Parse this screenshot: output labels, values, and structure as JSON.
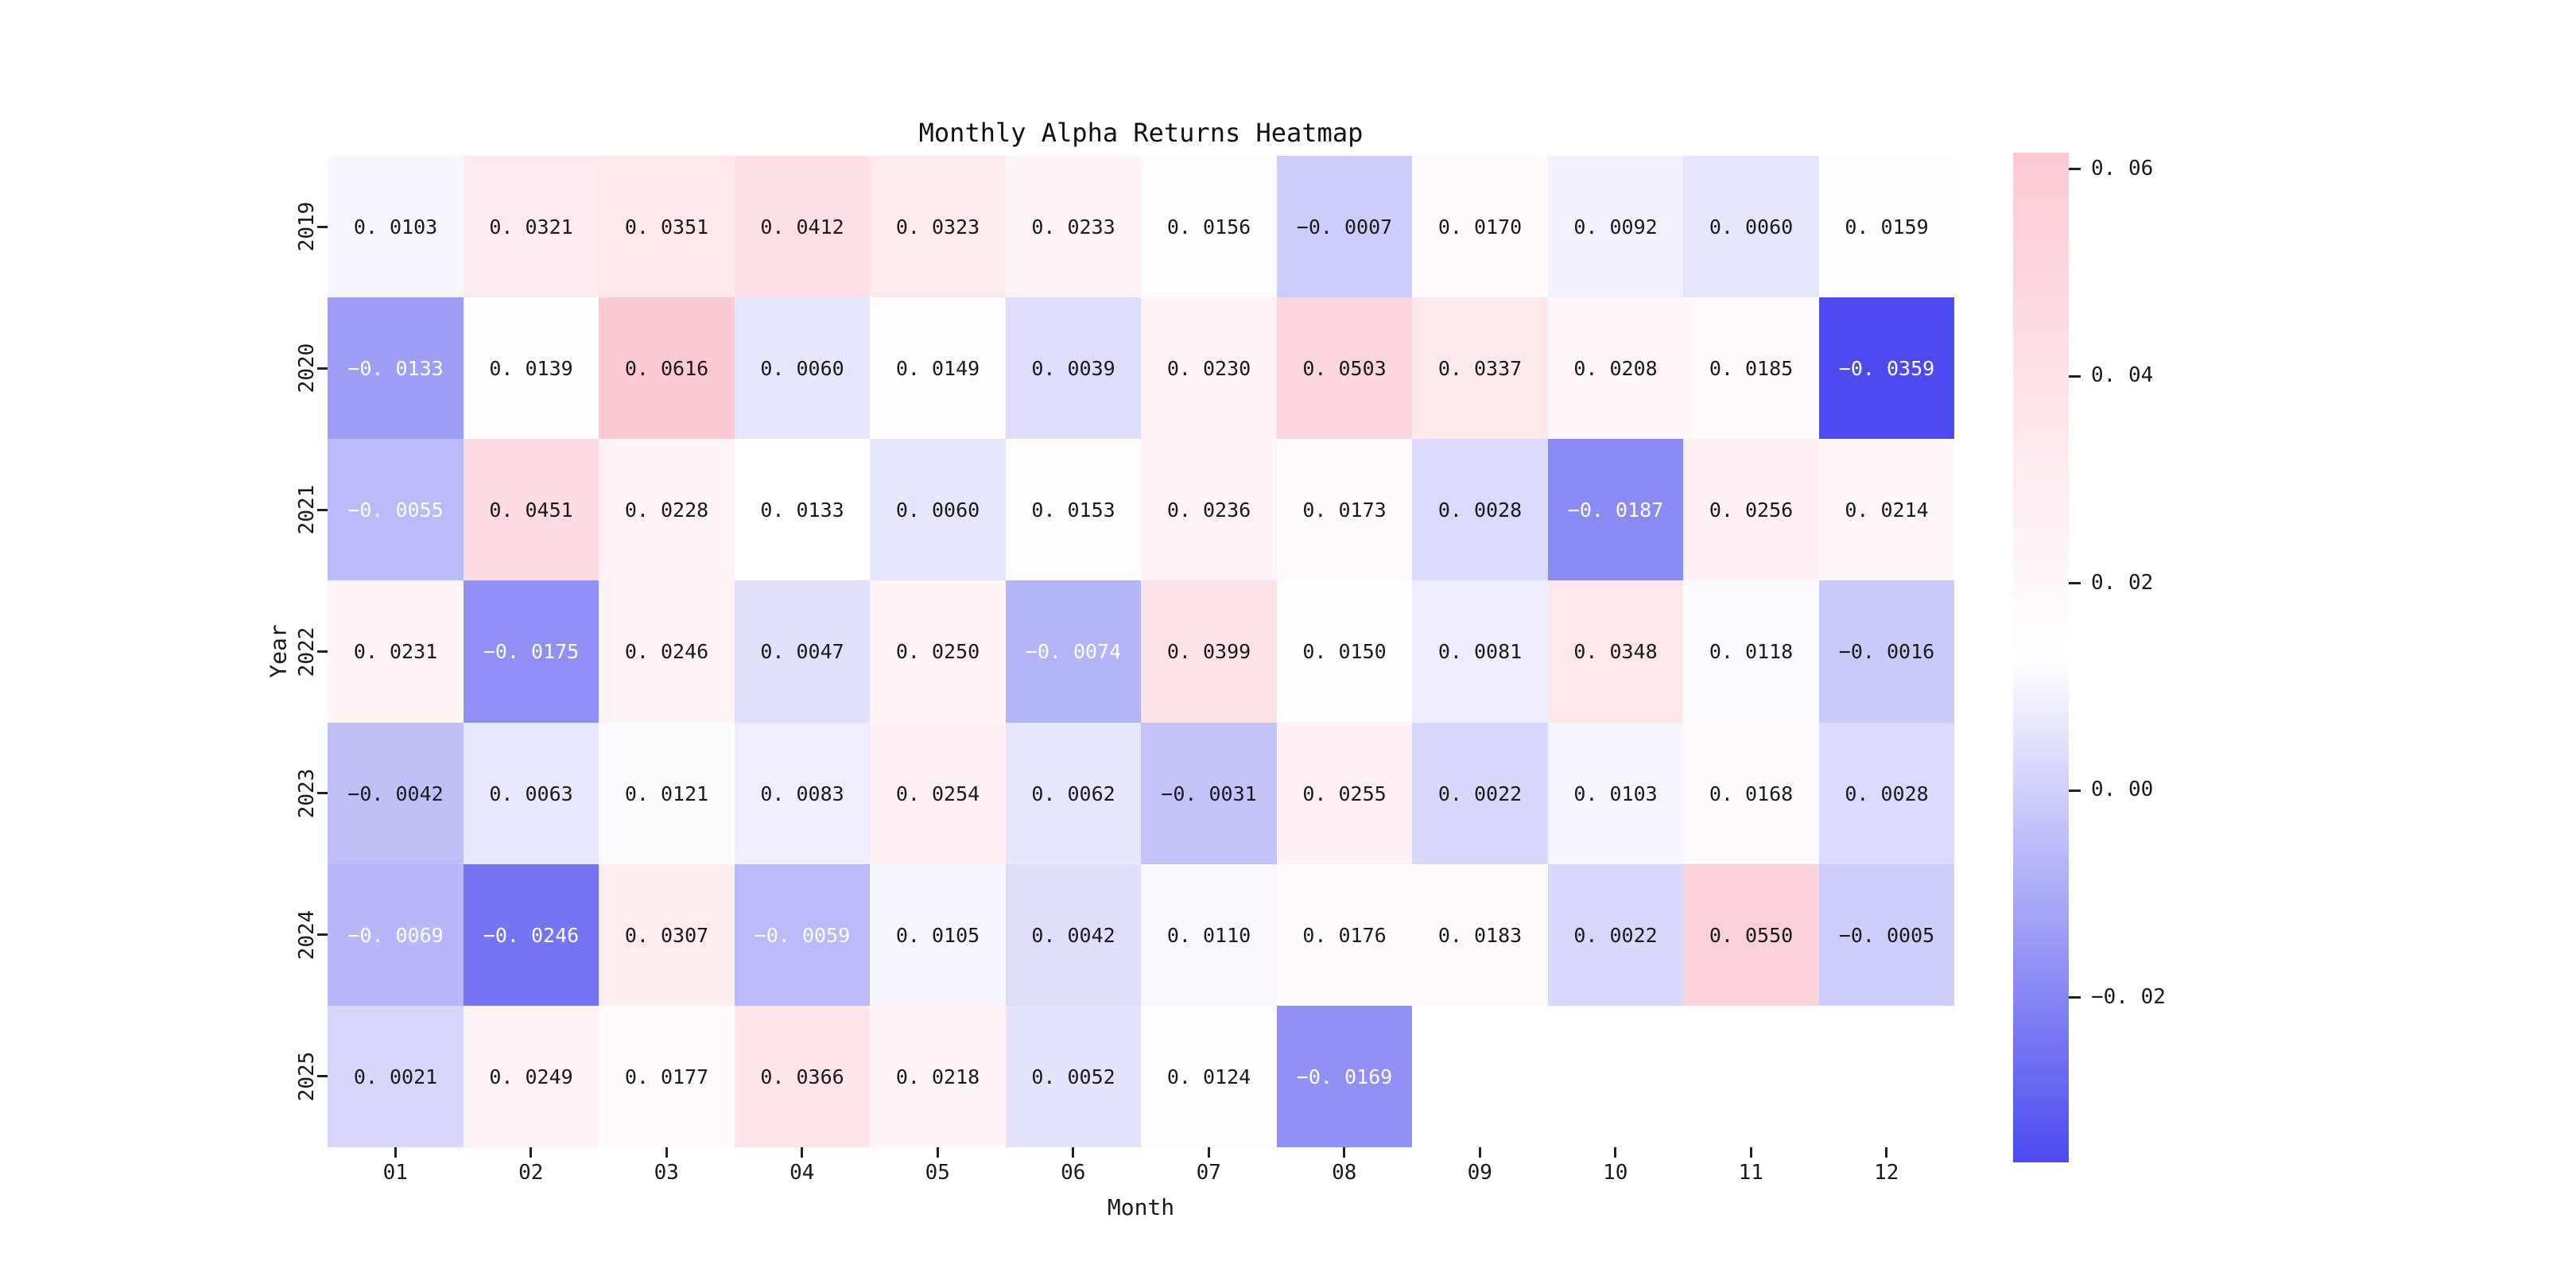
{
  "figure": {
    "background": "#ffffff"
  },
  "chart_data": {
    "type": "heatmap",
    "title": "Monthly Alpha Returns Heatmap",
    "xlabel": "Month",
    "ylabel": "Year",
    "columns": [
      "01",
      "02",
      "03",
      "04",
      "05",
      "06",
      "07",
      "08",
      "09",
      "10",
      "11",
      "12"
    ],
    "rows": [
      "2019",
      "2020",
      "2021",
      "2022",
      "2023",
      "2024",
      "2025"
    ],
    "values": [
      [
        0.0103,
        0.0321,
        0.0351,
        0.0412,
        0.0323,
        0.0233,
        0.0156,
        -0.0007,
        0.017,
        0.0092,
        0.006,
        0.0159
      ],
      [
        -0.0133,
        0.0139,
        0.0616,
        0.006,
        0.0149,
        0.0039,
        0.023,
        0.0503,
        0.0337,
        0.0208,
        0.0185,
        -0.0359
      ],
      [
        -0.0055,
        0.0451,
        0.0228,
        0.0133,
        0.006,
        0.0153,
        0.0236,
        0.0173,
        0.0028,
        -0.0187,
        0.0256,
        0.0214
      ],
      [
        0.0231,
        -0.0175,
        0.0246,
        0.0047,
        0.025,
        -0.0074,
        0.0399,
        0.015,
        0.0081,
        0.0348,
        0.0118,
        -0.0016
      ],
      [
        -0.0042,
        0.0063,
        0.0121,
        0.0083,
        0.0254,
        0.0062,
        -0.0031,
        0.0255,
        0.0022,
        0.0103,
        0.0168,
        0.0028
      ],
      [
        -0.0069,
        -0.0246,
        0.0307,
        -0.0059,
        0.0105,
        0.0042,
        0.011,
        0.0176,
        0.0183,
        0.0022,
        0.055,
        -0.0005
      ],
      [
        0.0021,
        0.0249,
        0.0177,
        0.0366,
        0.0218,
        0.0052,
        0.0124,
        -0.0169,
        null,
        null,
        null,
        null
      ]
    ],
    "vmin": -0.0359,
    "vmax": 0.0616,
    "annotation_decimals": 4,
    "colormap": {
      "negative_end": "#4b4bef",
      "midpoint": "#ffffff",
      "positive_end": "#fbcad3"
    },
    "annotation_colors": {
      "dark": "#1a1a1a",
      "light": "#ffffff"
    },
    "white_text_threshold": -0.005,
    "grid": false,
    "legend": false,
    "colorbar": {
      "position": "right",
      "ticks": [
        0.06,
        0.04,
        0.02,
        0.0,
        -0.02
      ],
      "tick_decimals": 2
    }
  }
}
